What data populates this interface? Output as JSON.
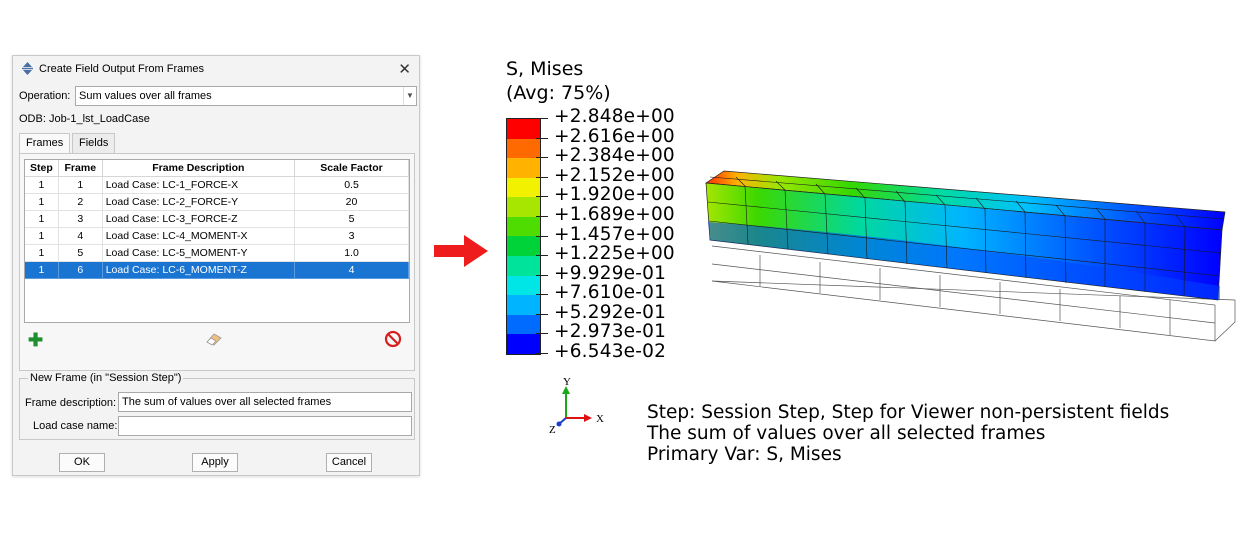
{
  "dialog": {
    "title": "Create Field Output From Frames",
    "operation_label": "Operation:",
    "operation_value": "Sum values over all frames",
    "odb_label": "ODB: Job-1_lst_LoadCase",
    "tabs": [
      "Frames",
      "Fields"
    ],
    "table": {
      "headers": [
        "Step",
        "Frame",
        "Frame Description",
        "Scale Factor"
      ],
      "rows": [
        [
          "1",
          "1",
          "Load Case: LC-1_FORCE-X",
          "0.5"
        ],
        [
          "1",
          "2",
          "Load Case: LC-2_FORCE-Y",
          "20"
        ],
        [
          "1",
          "3",
          "Load Case: LC-3_FORCE-Z",
          "5"
        ],
        [
          "1",
          "4",
          "Load Case: LC-4_MOMENT-X",
          "3"
        ],
        [
          "1",
          "5",
          "Load Case: LC-5_MOMENT-Y",
          "1.0"
        ],
        [
          "1",
          "6",
          "Load Case: LC-6_MOMENT-Z",
          "4"
        ]
      ],
      "selected_row": 6
    },
    "new_frame_group": "New Frame (in \"Session Step\")",
    "frame_description_label": "Frame description:",
    "frame_description_value": "The sum of values over all selected frames",
    "load_case_label": "Load case name:",
    "load_case_value": "",
    "buttons": {
      "ok": "OK",
      "apply": "Apply",
      "cancel": "Cancel"
    }
  },
  "legend": {
    "title": "S, Mises",
    "avg": "(Avg: 75%)",
    "values": [
      "+2.848e+00",
      "+2.616e+00",
      "+2.384e+00",
      "+2.152e+00",
      "+1.920e+00",
      "+1.689e+00",
      "+1.457e+00",
      "+1.225e+00",
      "+9.929e-01",
      "+7.610e-01",
      "+5.292e-01",
      "+2.973e-01",
      "+6.543e-02"
    ],
    "colors": [
      "#ff0000",
      "#ff6a00",
      "#ffb300",
      "#f2f200",
      "#a6e600",
      "#4fdc00",
      "#00d23a",
      "#00e39a",
      "#00e6e6",
      "#00b4ff",
      "#006cff",
      "#0000ff"
    ]
  },
  "triad": {
    "y": "Y",
    "x": "X",
    "z": "Z"
  },
  "info": {
    "line1": "Step: Session Step, Step for Viewer non-persistent fields",
    "line2": "The sum of values over all selected frames",
    "line3": "Primary Var: S, Mises"
  },
  "icons": [
    "app-icon",
    "close-icon",
    "chevron-down-icon",
    "add-icon",
    "eraser-icon",
    "delete-icon",
    "arrow-right-icon"
  ]
}
